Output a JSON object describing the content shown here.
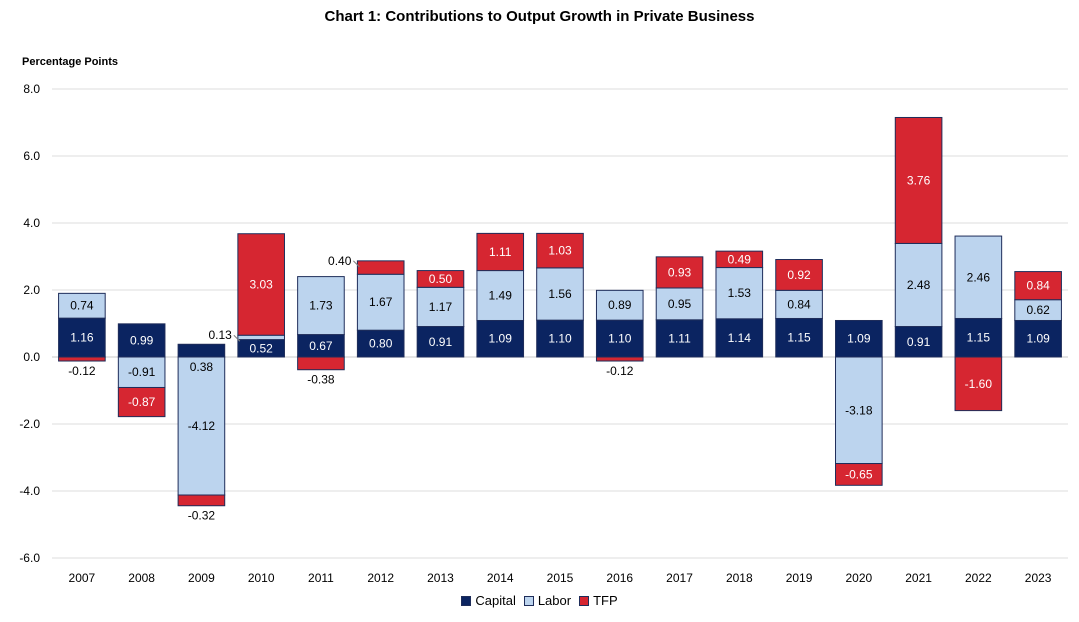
{
  "chart_data": {
    "type": "bar",
    "stacked": true,
    "title": "Chart 1: Contributions to Output Growth in Private Business",
    "ylabel": "Percentage Points",
    "xlabel": "",
    "ylim": [
      -6.0,
      8.0
    ],
    "yticks": [
      "8.0",
      "6.0",
      "4.0",
      "2.0",
      "0.0",
      "-2.0",
      "-4.0",
      "-6.0"
    ],
    "ytick_values": [
      8,
      6,
      4,
      2,
      0,
      -2,
      -4,
      -6
    ],
    "grid": true,
    "legend_position": "bottom",
    "categories": [
      "2007",
      "2008",
      "2009",
      "2010",
      "2011",
      "2012",
      "2013",
      "2014",
      "2015",
      "2016",
      "2017",
      "2018",
      "2019",
      "2020",
      "2021",
      "2022",
      "2023"
    ],
    "series": [
      {
        "name": "Capital",
        "color": "#0b2461",
        "label_color": "#ffffff",
        "values": [
          1.16,
          0.99,
          0.38,
          0.52,
          0.67,
          0.8,
          0.91,
          1.09,
          1.1,
          1.1,
          1.11,
          1.14,
          1.15,
          1.09,
          0.91,
          1.15,
          1.09
        ],
        "labels": [
          "1.16",
          "0.99",
          "0.38",
          "0.52",
          "0.67",
          "0.80",
          "0.91",
          "1.09",
          "1.10",
          "1.10",
          "1.11",
          "1.14",
          "1.15",
          "1.09",
          "0.91",
          "1.15",
          "1.09"
        ]
      },
      {
        "name": "Labor",
        "color": "#bcd4ee",
        "label_color": "#000000",
        "values": [
          0.74,
          -0.91,
          -4.12,
          0.13,
          1.73,
          1.67,
          1.17,
          1.49,
          1.56,
          0.89,
          0.95,
          1.53,
          0.84,
          -3.18,
          2.48,
          2.46,
          0.62
        ],
        "labels": [
          "0.74",
          "-0.91",
          "-4.12",
          "0.13",
          "1.73",
          "1.67",
          "1.17",
          "1.49",
          "1.56",
          "0.89",
          "0.95",
          "1.53",
          "0.84",
          "-3.18",
          "2.48",
          "2.46",
          "0.62"
        ]
      },
      {
        "name": "TFP",
        "color": "#d62631",
        "label_color": "#ffffff",
        "values": [
          -0.12,
          -0.87,
          -0.32,
          3.03,
          -0.38,
          0.4,
          0.5,
          1.11,
          1.03,
          -0.12,
          0.93,
          0.49,
          0.92,
          -0.65,
          3.76,
          -1.6,
          0.84
        ],
        "labels": [
          "-0.12",
          "-0.87",
          "-0.32",
          "3.03",
          "-0.38",
          "0.40",
          "0.50",
          "1.11",
          "1.03",
          "-0.12",
          "0.93",
          "0.49",
          "0.92",
          "-0.65",
          "3.76",
          "-1.60",
          "0.84"
        ]
      }
    ]
  }
}
